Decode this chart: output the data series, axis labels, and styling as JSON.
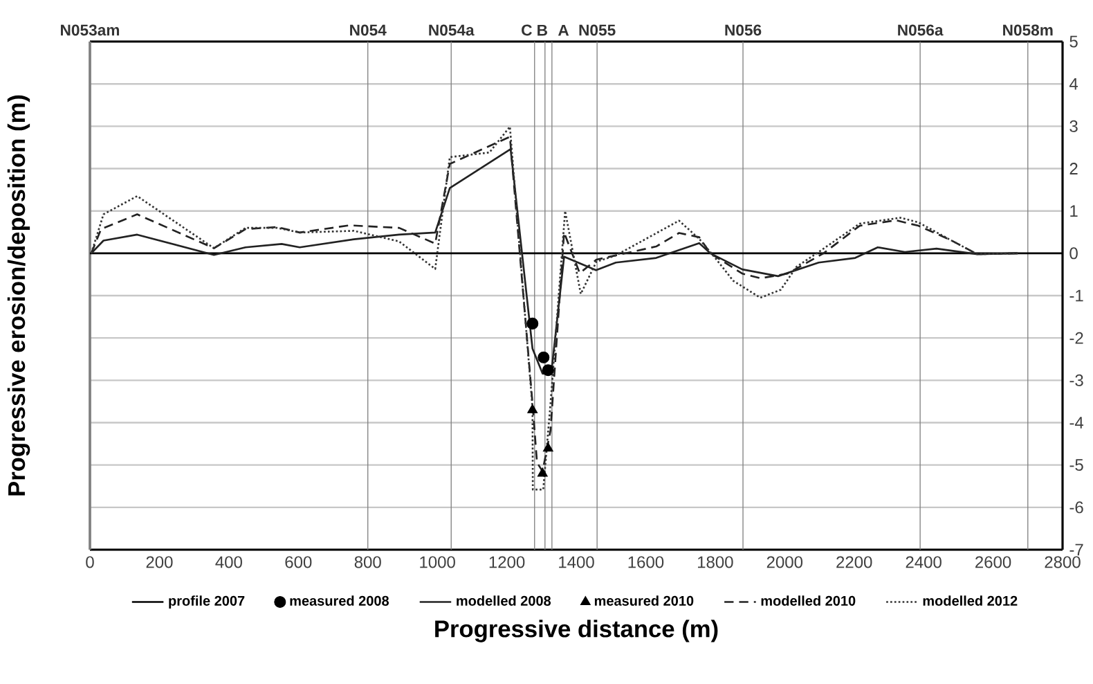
{
  "chart_data": {
    "type": "line",
    "xlabel": "Progressive distance (m)",
    "ylabel": "Progressive erosion/deposition (m)",
    "xlim": [
      0,
      2800
    ],
    "ylim": [
      -7,
      5
    ],
    "xticks": [
      0,
      200,
      400,
      600,
      800,
      1000,
      1200,
      1400,
      1600,
      1800,
      2000,
      2200,
      2400,
      2600,
      2800
    ],
    "yticks": [
      -7,
      -6,
      -5,
      -4,
      -3,
      -2,
      -1,
      0,
      1,
      2,
      3,
      4,
      5
    ],
    "grid": "y",
    "legend": "bottom",
    "ref_lines": [
      {
        "axis": "x",
        "value": 0,
        "label": "N053am"
      },
      {
        "axis": "x",
        "value": 800,
        "label": "N054"
      },
      {
        "axis": "x",
        "value": 1040,
        "label": "N054a"
      },
      {
        "axis": "x",
        "value": 1280,
        "label": "C"
      },
      {
        "axis": "x",
        "value": 1310,
        "label": "B"
      },
      {
        "axis": "x",
        "value": 1330,
        "label": "A"
      },
      {
        "axis": "x",
        "value": 1460,
        "label": "N055"
      },
      {
        "axis": "x",
        "value": 1880,
        "label": "N056"
      },
      {
        "axis": "x",
        "value": 2390,
        "label": "N056a"
      },
      {
        "axis": "x",
        "value": 2700,
        "label": "N058m"
      }
    ],
    "series": [
      {
        "name": "profile 2007",
        "line_style": "solid",
        "marker": "none",
        "color": "#000000",
        "x": [
          0,
          2800
        ],
        "values": [
          0,
          0
        ]
      },
      {
        "name": "measured 2008",
        "type": "scatter",
        "marker": "circle",
        "color": "#000000",
        "x": [
          1274,
          1306,
          1319
        ],
        "values": [
          -1.66,
          -2.46,
          -2.76
        ]
      },
      {
        "name": "modelled 2008",
        "line_style": "solid",
        "marker": "none",
        "color": "#222222",
        "x": [
          4,
          39,
          136,
          357,
          448,
          552,
          604,
          760,
          890,
          994,
          1036,
          1211,
          1274,
          1303,
          1328,
          1365,
          1457,
          1514,
          1630,
          1754,
          1786,
          1878,
          1981,
          2098,
          2203,
          2268,
          2346,
          2437,
          2554,
          2671
        ],
        "values": [
          0,
          0.3,
          0.44,
          -0.04,
          0.14,
          0.22,
          0.14,
          0.33,
          0.44,
          0.49,
          1.54,
          2.46,
          -2.25,
          -2.84,
          -2.84,
          -0.08,
          -0.4,
          -0.22,
          -0.11,
          0.24,
          0,
          -0.38,
          -0.54,
          -0.22,
          -0.11,
          0.14,
          0.03,
          0.11,
          -0.02,
          0
        ]
      },
      {
        "name": "measured 2010",
        "type": "scatter",
        "marker": "triangle",
        "color": "#000000",
        "x": [
          1274,
          1303,
          1319
        ],
        "values": [
          -3.7,
          -5.2,
          -4.61
        ]
      },
      {
        "name": "modelled 2010",
        "line_style": "dashed",
        "marker": "none",
        "color": "#222222",
        "x": [
          4,
          32,
          136,
          357,
          448,
          539,
          604,
          747,
          890,
          994,
          1036,
          1209,
          1274,
          1287,
          1303,
          1326,
          1365,
          1410,
          1458,
          1514,
          1630,
          1696,
          1754,
          1786,
          1878,
          1930,
          2008,
          2112,
          2216,
          2320,
          2385,
          2476,
          2554,
          2671
        ],
        "values": [
          0,
          0.57,
          0.92,
          0.12,
          0.57,
          0.62,
          0.49,
          0.66,
          0.6,
          0.23,
          2.11,
          2.75,
          -3.54,
          -4.94,
          -5.15,
          -4.18,
          0.49,
          -0.47,
          -0.15,
          -0.05,
          0.16,
          0.48,
          0.38,
          0,
          -0.48,
          -0.59,
          -0.48,
          0,
          0.65,
          0.78,
          0.65,
          0.32,
          -0.02,
          0
        ]
      },
      {
        "name": "modelled 2012",
        "line_style": "dotted",
        "marker": "none",
        "color": "#333333",
        "x": [
          4,
          39,
          136,
          357,
          448,
          539,
          604,
          760,
          890,
          994,
          1036,
          1150,
          1209,
          1274,
          1275,
          1305,
          1326,
          1368,
          1413,
          1458,
          1514,
          1696,
          1754,
          1800,
          1852,
          1930,
          1989,
          2034,
          2112,
          2216,
          2333,
          2385,
          2476,
          2554,
          2671
        ],
        "values": [
          0,
          0.92,
          1.35,
          0.12,
          0.6,
          0.6,
          0.49,
          0.53,
          0.28,
          -0.37,
          2.27,
          2.38,
          2.99,
          -3.65,
          -5.58,
          -5.58,
          -3.54,
          1.0,
          -0.96,
          -0.2,
          -0.05,
          0.77,
          0.34,
          -0.11,
          -0.65,
          -1.05,
          -0.86,
          -0.32,
          0.11,
          0.7,
          0.84,
          0.73,
          0.32,
          -0.02,
          0
        ]
      }
    ]
  }
}
